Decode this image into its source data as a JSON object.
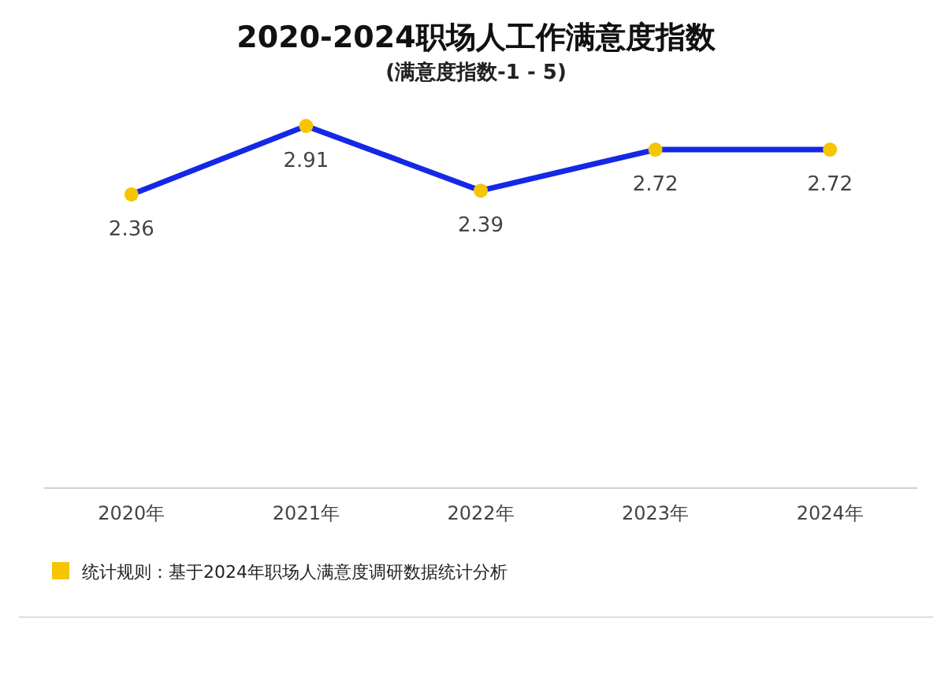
{
  "chart_data": {
    "type": "line",
    "title": "2020-2024职场人工作满意度指数",
    "subtitle": "(满意度指数-1 - 5)",
    "categories": [
      "2020年",
      "2021年",
      "2022年",
      "2023年",
      "2024年"
    ],
    "series": [
      {
        "color": "#1428e6",
        "colors": [
          "#f5c500",
          "#f5c500",
          "#f5c500",
          "#f5c500",
          "#f5c500"
        ],
        "values": [
          2.36,
          2.91,
          2.39,
          2.72,
          2.72
        ]
      }
    ],
    "data_labels": true,
    "marker": "circle",
    "line_style": "solid",
    "tick_labels": "x",
    "annotations": [
      "统计规则：基于2024年职场人满意度调研数据统计分析"
    ]
  }
}
